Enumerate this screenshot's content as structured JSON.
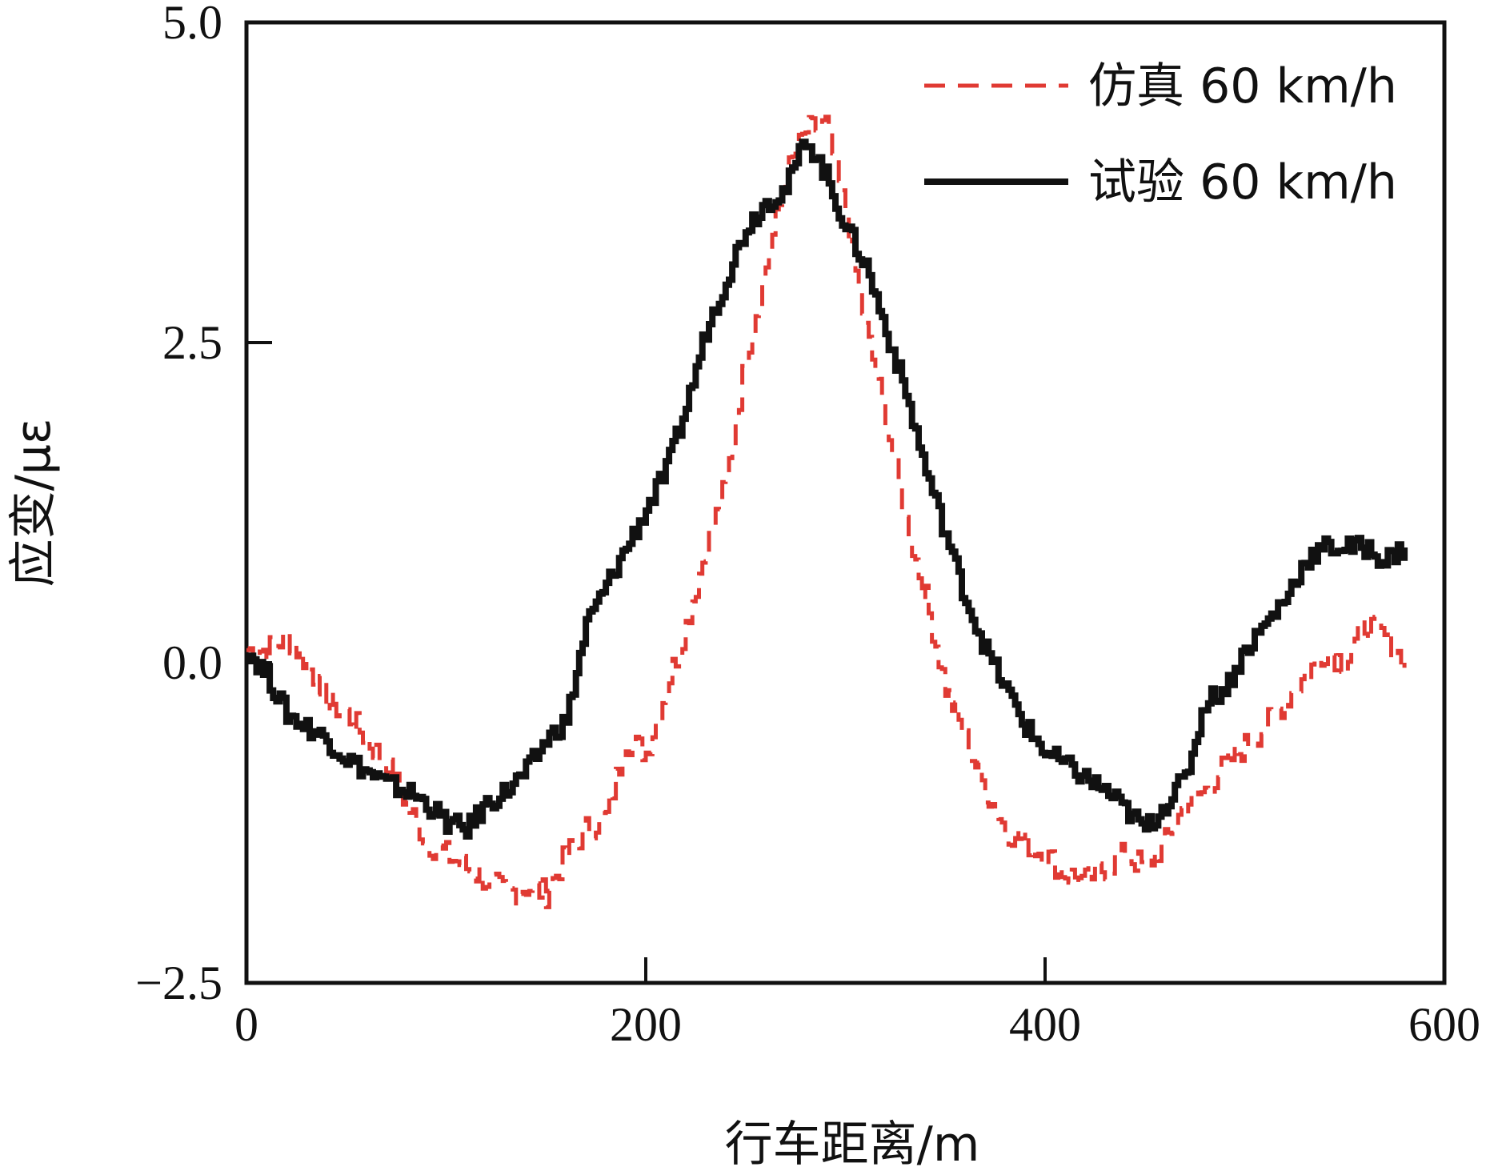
{
  "chart_data": {
    "type": "line",
    "xlabel": "行车距离/m",
    "ylabel": "应变/με",
    "xlim": [
      0,
      600
    ],
    "ylim": [
      -2.5,
      5.0
    ],
    "x_ticks": [
      "0",
      "200",
      "400",
      "600"
    ],
    "y_ticks": [
      "5.0",
      "2.5",
      "0.0",
      "−2.5"
    ],
    "grid": false,
    "legend_position": "top-right",
    "series": [
      {
        "name": "仿真 60 km/h",
        "color": "#e03a33",
        "dash": true,
        "x": [
          0,
          10,
          20,
          30,
          40,
          50,
          60,
          70,
          80,
          90,
          100,
          110,
          120,
          130,
          140,
          150,
          160,
          170,
          180,
          190,
          200,
          210,
          220,
          230,
          240,
          250,
          260,
          270,
          280,
          290,
          300,
          310,
          320,
          330,
          340,
          350,
          360,
          370,
          380,
          390,
          400,
          410,
          420,
          430,
          440,
          450,
          460,
          470,
          480,
          490,
          500,
          510,
          520,
          530,
          540,
          550,
          560,
          570,
          580
        ],
        "y": [
          0.1,
          0.1,
          0.2,
          0.0,
          -0.3,
          -0.4,
          -0.6,
          -0.8,
          -1.1,
          -1.4,
          -1.5,
          -1.6,
          -1.7,
          -1.8,
          -1.75,
          -1.8,
          -1.5,
          -1.3,
          -1.2,
          -0.6,
          -0.7,
          -0.2,
          0.3,
          0.9,
          1.4,
          2.4,
          3.1,
          3.8,
          4.15,
          4.2,
          3.5,
          2.6,
          1.9,
          1.1,
          0.5,
          -0.2,
          -0.6,
          -1.0,
          -1.3,
          -1.4,
          -1.5,
          -1.65,
          -1.7,
          -1.6,
          -1.5,
          -1.6,
          -1.4,
          -1.1,
          -1.0,
          -0.8,
          -0.65,
          -0.5,
          -0.3,
          -0.1,
          0.1,
          0.0,
          0.3,
          0.2,
          0.0
        ]
      },
      {
        "name": "试验 60 km/h",
        "color": "#111111",
        "dash": false,
        "x": [
          0,
          10,
          20,
          30,
          40,
          50,
          60,
          70,
          80,
          90,
          100,
          110,
          120,
          130,
          140,
          150,
          160,
          170,
          180,
          190,
          200,
          210,
          220,
          230,
          240,
          250,
          260,
          270,
          280,
          290,
          300,
          310,
          320,
          330,
          340,
          350,
          360,
          370,
          380,
          390,
          400,
          410,
          420,
          430,
          440,
          450,
          460,
          470,
          480,
          490,
          500,
          510,
          520,
          530,
          540,
          550,
          560,
          570,
          580
        ],
        "y": [
          0.1,
          -0.1,
          -0.4,
          -0.5,
          -0.6,
          -0.75,
          -0.85,
          -0.95,
          -1.0,
          -1.1,
          -1.25,
          -1.3,
          -1.1,
          -1.0,
          -0.85,
          -0.6,
          -0.45,
          0.3,
          0.6,
          0.9,
          1.2,
          1.5,
          2.0,
          2.6,
          3.0,
          3.4,
          3.6,
          3.7,
          4.1,
          3.8,
          3.4,
          3.1,
          2.6,
          2.1,
          1.5,
          1.0,
          0.5,
          0.1,
          -0.2,
          -0.5,
          -0.7,
          -0.8,
          -0.9,
          -1.0,
          -1.15,
          -1.3,
          -1.1,
          -0.9,
          -0.3,
          -0.2,
          0.1,
          0.3,
          0.5,
          0.8,
          0.9,
          0.9,
          0.9,
          0.8,
          0.9
        ]
      }
    ]
  }
}
